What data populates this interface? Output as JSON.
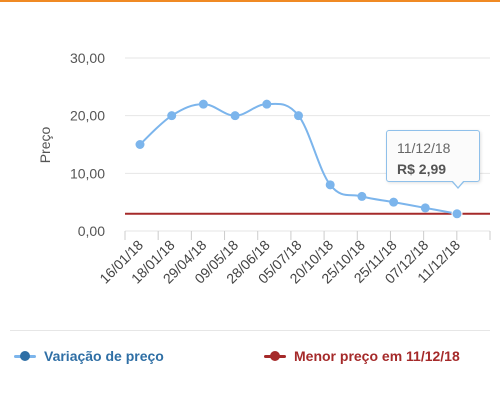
{
  "colors": {
    "accent": "#f08a24",
    "series_line": "#7cb5ec",
    "series_point": "#7cb5ec",
    "min_price_line": "#a52a2a",
    "grid": "#e6e6e6",
    "legend_series": "#2f6fa5",
    "legend_min": "#a52a2a"
  },
  "tooltip": {
    "date": "11/12/18",
    "price": "R$ 2,99"
  },
  "legend": {
    "series_label": "Variação de preço",
    "min_label": "Menor preço em 11/12/18"
  },
  "chart_data": {
    "type": "line",
    "ylabel": "Preço",
    "xlabel": "",
    "ylim": [
      0,
      30
    ],
    "yticks": [
      0,
      10,
      20,
      30
    ],
    "ytick_labels": [
      "0,00",
      "10,00",
      "20,00",
      "30,00"
    ],
    "grid": true,
    "categories": [
      "16/01/18",
      "18/01/18",
      "29/04/18",
      "09/05/18",
      "28/06/18",
      "05/07/18",
      "20/10/18",
      "25/10/18",
      "25/11/18",
      "07/12/18",
      "11/12/18"
    ],
    "series": [
      {
        "name": "Variação de preço",
        "values": [
          15,
          20,
          22,
          20,
          22,
          20,
          8,
          6,
          5,
          4,
          2.99
        ]
      }
    ],
    "reference_line": {
      "name": "Menor preço em 11/12/18",
      "value": 2.99
    }
  }
}
